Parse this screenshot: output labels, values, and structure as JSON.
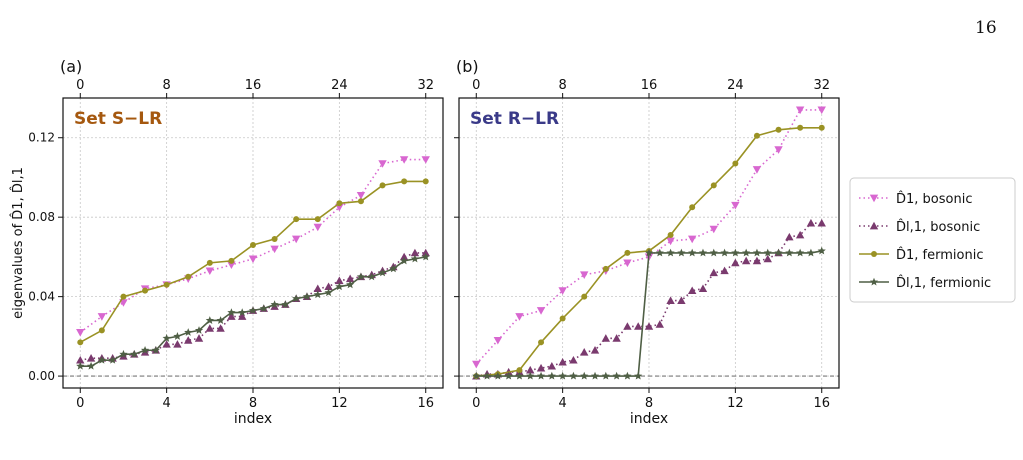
{
  "page_number": "16",
  "y_axis_label": "eigenvalues of D̂1, D̂l,1",
  "legend": [
    {
      "label": "D̂1, bosonic",
      "color": "#d867d0",
      "dash": "dotted",
      "marker": "triangle-down"
    },
    {
      "label": "D̂l,1, bosonic",
      "color": "#7a3a6e",
      "dash": "dotted",
      "marker": "triangle-up"
    },
    {
      "label": "D̂1, fermionic",
      "color": "#9a9224",
      "dash": "solid",
      "marker": "circle"
    },
    {
      "label": "D̂l,1, fermionic",
      "color": "#4f5f45",
      "dash": "solid",
      "marker": "star"
    }
  ],
  "chart_data": [
    {
      "type": "line",
      "panel_label": "(a)",
      "annotation": "Set S−LR",
      "annotation_color": "#a5580f",
      "xlabel": "index",
      "xlim": [
        -0.8,
        16.8
      ],
      "ylim": [
        -0.006,
        0.14
      ],
      "x_ticks": [
        "0",
        "4",
        "8",
        "12",
        "16"
      ],
      "top_x_ticks": [
        "0",
        "8",
        "16",
        "24",
        "32"
      ],
      "y_ticks": [
        "0.00",
        "0.04",
        "0.08",
        "0.12"
      ],
      "grid": true,
      "series": [
        {
          "name": "D̂1, bosonic",
          "x": [
            0,
            1,
            2,
            3,
            4,
            5,
            6,
            7,
            8,
            9,
            10,
            11,
            12,
            13,
            14,
            15,
            16
          ],
          "y": [
            0.022,
            0.03,
            0.037,
            0.044,
            0.046,
            0.049,
            0.053,
            0.056,
            0.059,
            0.064,
            0.069,
            0.075,
            0.085,
            0.091,
            0.107,
            0.109,
            0.109
          ]
        },
        {
          "name": "D̂l,1, bosonic",
          "x": [
            0,
            0.5,
            1,
            1.5,
            2,
            2.5,
            3,
            3.5,
            4,
            4.5,
            5,
            5.5,
            6,
            6.5,
            7,
            7.5,
            8,
            8.5,
            9,
            9.5,
            10,
            10.5,
            11,
            11.5,
            12,
            12.5,
            13,
            13.5,
            14,
            14.5,
            15,
            15.5,
            16
          ],
          "y": [
            0.008,
            0.009,
            0.009,
            0.009,
            0.01,
            0.011,
            0.012,
            0.013,
            0.016,
            0.016,
            0.018,
            0.019,
            0.024,
            0.024,
            0.03,
            0.03,
            0.033,
            0.034,
            0.035,
            0.036,
            0.039,
            0.04,
            0.044,
            0.045,
            0.048,
            0.049,
            0.05,
            0.051,
            0.053,
            0.055,
            0.06,
            0.062,
            0.062
          ]
        },
        {
          "name": "D̂1, fermionic",
          "x": [
            0,
            1,
            2,
            3,
            4,
            5,
            6,
            7,
            8,
            9,
            10,
            11,
            12,
            13,
            14,
            15,
            16
          ],
          "y": [
            0.017,
            0.023,
            0.04,
            0.043,
            0.046,
            0.05,
            0.057,
            0.058,
            0.066,
            0.069,
            0.079,
            0.079,
            0.087,
            0.088,
            0.096,
            0.098,
            0.098
          ]
        },
        {
          "name": "D̂l,1, fermionic",
          "x": [
            0,
            0.5,
            1,
            1.5,
            2,
            2.5,
            3,
            3.5,
            4,
            4.5,
            5,
            5.5,
            6,
            6.5,
            7,
            7.5,
            8,
            8.5,
            9,
            9.5,
            10,
            10.5,
            11,
            11.5,
            12,
            12.5,
            13,
            13.5,
            14,
            14.5,
            15,
            15.5,
            16
          ],
          "y": [
            0.005,
            0.005,
            0.008,
            0.008,
            0.011,
            0.011,
            0.013,
            0.013,
            0.019,
            0.02,
            0.022,
            0.023,
            0.028,
            0.028,
            0.032,
            0.032,
            0.033,
            0.034,
            0.036,
            0.036,
            0.039,
            0.04,
            0.041,
            0.042,
            0.045,
            0.046,
            0.05,
            0.05,
            0.052,
            0.054,
            0.058,
            0.059,
            0.06
          ]
        }
      ]
    },
    {
      "type": "line",
      "panel_label": "(b)",
      "annotation": "Set R−LR",
      "annotation_color": "#3a3a88",
      "xlabel": "index",
      "xlim": [
        -0.8,
        16.8
      ],
      "ylim": [
        -0.006,
        0.14
      ],
      "x_ticks": [
        "0",
        "4",
        "8",
        "12",
        "16"
      ],
      "top_x_ticks": [
        "0",
        "8",
        "16",
        "24",
        "32"
      ],
      "y_ticks": [
        "0.00",
        "0.04",
        "0.08",
        "0.12"
      ],
      "grid": true,
      "series": [
        {
          "name": "D̂1, bosonic",
          "x": [
            0,
            1,
            2,
            3,
            4,
            5,
            6,
            7,
            8,
            9,
            10,
            11,
            12,
            13,
            14,
            15,
            16
          ],
          "y": [
            0.006,
            0.018,
            0.03,
            0.033,
            0.043,
            0.051,
            0.053,
            0.057,
            0.06,
            0.068,
            0.069,
            0.074,
            0.086,
            0.104,
            0.114,
            0.134,
            0.134
          ]
        },
        {
          "name": "D̂l,1, bosonic",
          "x": [
            0,
            0.5,
            1,
            1.5,
            2,
            2.5,
            3,
            3.5,
            4,
            4.5,
            5,
            5.5,
            6,
            6.5,
            7,
            7.5,
            8,
            8.5,
            9,
            9.5,
            10,
            10.5,
            11,
            11.5,
            12,
            12.5,
            13,
            13.5,
            14,
            14.5,
            15,
            15.5,
            16
          ],
          "y": [
            0.0,
            0.001,
            0.001,
            0.002,
            0.002,
            0.003,
            0.004,
            0.005,
            0.007,
            0.008,
            0.012,
            0.013,
            0.019,
            0.019,
            0.025,
            0.025,
            0.025,
            0.026,
            0.038,
            0.038,
            0.043,
            0.044,
            0.052,
            0.053,
            0.057,
            0.058,
            0.058,
            0.059,
            0.062,
            0.07,
            0.071,
            0.077,
            0.077
          ]
        },
        {
          "name": "D̂1, fermionic",
          "x": [
            0,
            1,
            2,
            3,
            4,
            5,
            6,
            7,
            8,
            9,
            10,
            11,
            12,
            13,
            14,
            15,
            16
          ],
          "y": [
            0.0,
            0.001,
            0.003,
            0.017,
            0.029,
            0.04,
            0.054,
            0.062,
            0.063,
            0.071,
            0.085,
            0.096,
            0.107,
            0.121,
            0.124,
            0.125,
            0.125
          ]
        },
        {
          "name": "D̂l,1, fermionic",
          "x": [
            0,
            0.5,
            1,
            1.5,
            2,
            2.5,
            3,
            3.5,
            4,
            4.5,
            5,
            5.5,
            6,
            6.5,
            7,
            7.5,
            8,
            8.5,
            9,
            9.5,
            10,
            10.5,
            11,
            11.5,
            12,
            12.5,
            13,
            13.5,
            14,
            14.5,
            15,
            15.5,
            16
          ],
          "y": [
            0.0,
            0.0,
            0.0,
            0.0,
            0.0,
            0.0,
            0.0,
            0.0,
            0.0,
            0.0,
            0.0,
            0.0,
            0.0,
            0.0,
            0.0,
            0.0,
            0.062,
            0.062,
            0.062,
            0.062,
            0.062,
            0.062,
            0.062,
            0.062,
            0.062,
            0.062,
            0.062,
            0.062,
            0.062,
            0.062,
            0.062,
            0.062,
            0.063
          ]
        }
      ]
    }
  ]
}
